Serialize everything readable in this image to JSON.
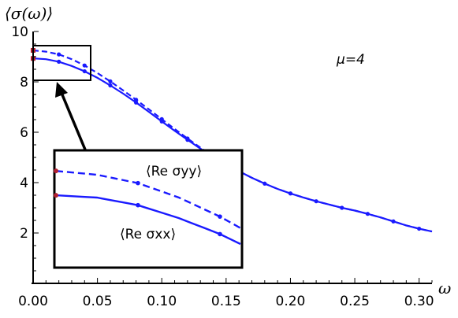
{
  "chart_data": {
    "type": "line",
    "title": "",
    "ylabel": "⟨σ(ω)⟩",
    "xlabel": "ω",
    "xlim": [
      0,
      0.31
    ],
    "ylim": [
      0,
      10
    ],
    "x_ticks": [
      "0.00",
      "0.05",
      "0.10",
      "0.15",
      "0.20",
      "0.25",
      "0.30"
    ],
    "y_ticks": [
      "2",
      "4",
      "6",
      "8",
      "10"
    ],
    "annotation_mu": "μ=4",
    "series": [
      {
        "name": "⟨Re σxx⟩",
        "style": "solid",
        "color": "#1a1aff",
        "x": [
          0.0,
          0.01,
          0.02,
          0.03,
          0.04,
          0.05,
          0.06,
          0.07,
          0.08,
          0.09,
          0.1,
          0.11,
          0.12,
          0.13,
          0.14,
          0.15,
          0.16,
          0.17,
          0.18,
          0.19,
          0.2,
          0.21,
          0.22,
          0.23,
          0.24,
          0.25,
          0.26,
          0.27,
          0.28,
          0.29,
          0.3,
          0.31
        ],
        "values": [
          8.93,
          8.9,
          8.8,
          8.63,
          8.42,
          8.16,
          7.86,
          7.53,
          7.18,
          6.81,
          6.43,
          6.06,
          5.7,
          5.35,
          5.03,
          4.73,
          4.45,
          4.19,
          3.96,
          3.75,
          3.57,
          3.41,
          3.26,
          3.13,
          3.0,
          2.89,
          2.76,
          2.62,
          2.46,
          2.3,
          2.17,
          2.06
        ]
      },
      {
        "name": "⟨Re σyy⟩",
        "style": "dashed",
        "color": "#1a1aff",
        "x": [
          0.0,
          0.01,
          0.02,
          0.03,
          0.04,
          0.05,
          0.06,
          0.07,
          0.08,
          0.09,
          0.1,
          0.11,
          0.12,
          0.13,
          0.14,
          0.15,
          0.16,
          0.17,
          0.18,
          0.19,
          0.2,
          0.21,
          0.22,
          0.23,
          0.24,
          0.25,
          0.26,
          0.27,
          0.28,
          0.29,
          0.3,
          0.31
        ],
        "values": [
          9.25,
          9.2,
          9.09,
          8.9,
          8.65,
          8.35,
          8.02,
          7.66,
          7.29,
          6.91,
          6.52,
          6.13,
          5.75,
          5.39,
          5.05,
          4.74,
          4.45,
          4.19,
          3.96,
          3.75,
          3.57,
          3.41,
          3.26,
          3.13,
          3.0,
          2.89,
          2.76,
          2.62,
          2.46,
          2.3,
          2.17,
          2.06
        ]
      }
    ],
    "points_xx_x": [
      0.02,
      0.04,
      0.06,
      0.08,
      0.1,
      0.12,
      0.14,
      0.16,
      0.18,
      0.2,
      0.22,
      0.24,
      0.26,
      0.28,
      0.3
    ],
    "points_yy_x": [
      0.02,
      0.04,
      0.06,
      0.08,
      0.1,
      0.12,
      0.14,
      0.16
    ],
    "inset": {
      "xlim": [
        0,
        0.045
      ],
      "ylim": [
        8.0,
        9.5
      ],
      "label_yy": "⟨Re σyy⟩",
      "label_xx": "⟨Re σxx⟩"
    },
    "colors": {
      "curve": "#1a1aff",
      "marker_zero": "#b02030",
      "axis": "#000000"
    }
  }
}
